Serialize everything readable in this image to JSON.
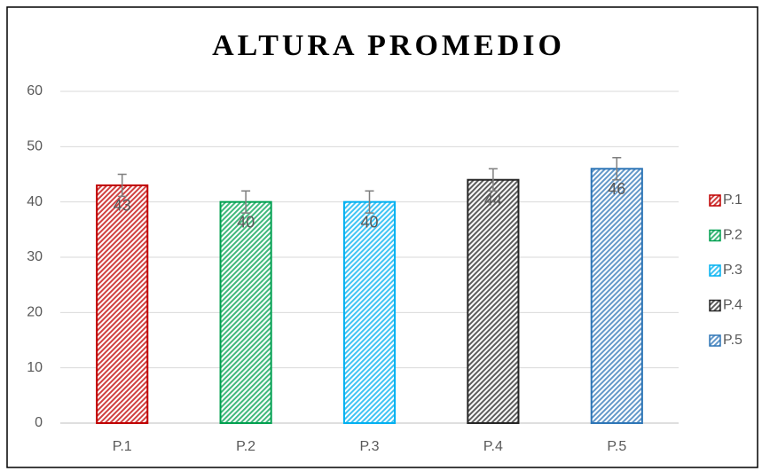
{
  "chart_data": {
    "type": "bar",
    "title": "ALTURA PROMEDIO",
    "categories": [
      "P.1",
      "P.2",
      "P.3",
      "P.4",
      "P.5"
    ],
    "values": [
      43,
      40,
      40,
      44,
      46
    ],
    "errors": [
      2,
      2,
      2,
      2,
      2
    ],
    "colors": [
      "#c00000",
      "#00a050",
      "#00b0f0",
      "#262626",
      "#2e75b6"
    ],
    "ylim": [
      0,
      60
    ],
    "yticks": [
      0,
      10,
      20,
      30,
      40,
      50,
      60
    ],
    "grid": true,
    "legend": "right"
  }
}
